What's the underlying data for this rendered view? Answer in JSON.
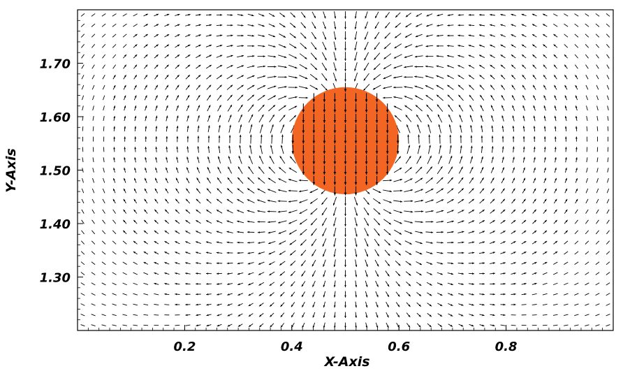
{
  "chart_data": {
    "type": "vector-field",
    "xlabel": "X-Axis",
    "ylabel": "Y-Axis",
    "xlim": [
      0.0,
      1.0
    ],
    "ylim": [
      1.2,
      1.8
    ],
    "x_ticks": [
      0.2,
      0.4,
      0.6,
      0.8
    ],
    "x_tick_labels": [
      "0.2",
      "0.4",
      "0.6",
      "0.8"
    ],
    "y_ticks": [
      1.3,
      1.4,
      1.5,
      1.6,
      1.7
    ],
    "y_tick_labels": [
      "1.30",
      "1.40",
      "1.50",
      "1.60",
      "1.70"
    ],
    "grid": false,
    "bubble": {
      "center_x": 0.5,
      "center_y": 1.555,
      "radius": 0.1,
      "color": "#f26522"
    },
    "inside_velocity": [
      0.0,
      -1.0
    ],
    "vector_grid": {
      "nx": 51,
      "ny": 31
    },
    "arrow_color": "#000000"
  }
}
